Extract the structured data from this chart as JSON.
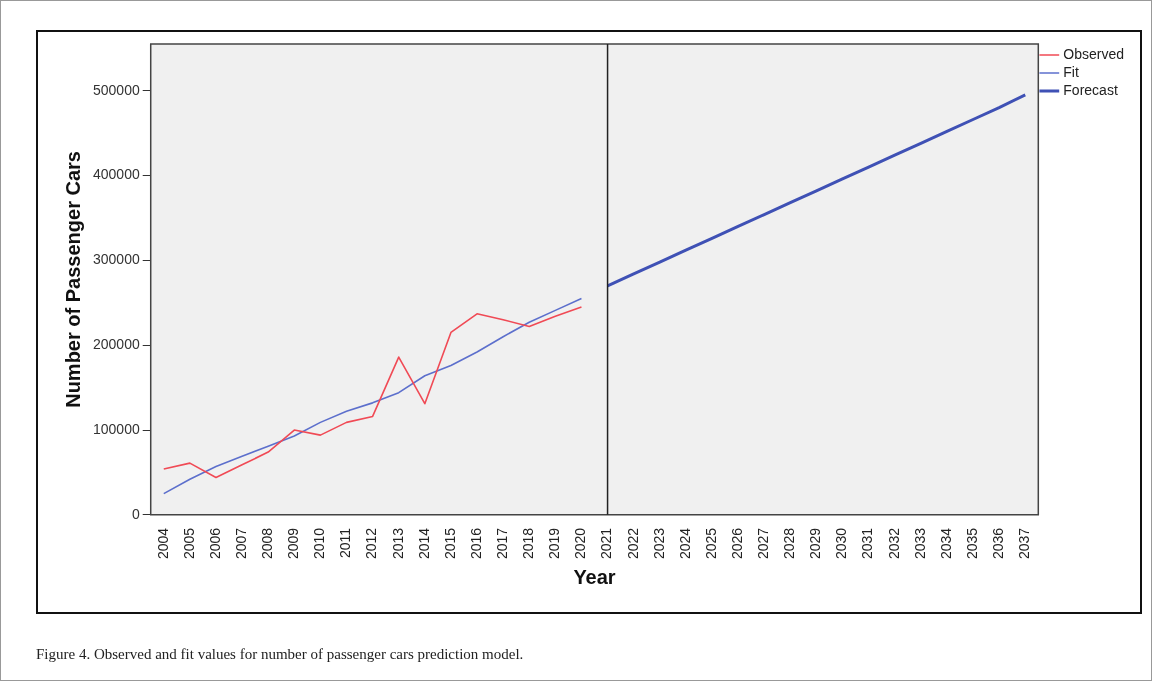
{
  "chart_data": {
    "type": "line",
    "xlabel": "Year",
    "ylabel": "Number of Passenger Cars",
    "categories": [
      "2004",
      "2005",
      "2006",
      "2007",
      "2008",
      "2009",
      "2010",
      "2011",
      "2012",
      "2013",
      "2014",
      "2015",
      "2016",
      "2017",
      "2018",
      "2019",
      "2020",
      "2021",
      "2022",
      "2023",
      "2024",
      "2025",
      "2026",
      "2027",
      "2028",
      "2029",
      "2030",
      "2031",
      "2032",
      "2033",
      "2034",
      "2035",
      "2036",
      "2037"
    ],
    "series": [
      {
        "name": "Observed",
        "color": "#f04a55",
        "values": [
          54000,
          61000,
          44000,
          59000,
          74000,
          100000,
          94000,
          109000,
          116000,
          186000,
          131000,
          215000,
          237000,
          230000,
          222000,
          234000,
          245000,
          null,
          null,
          null,
          null,
          null,
          null,
          null,
          null,
          null,
          null,
          null,
          null,
          null,
          null,
          null,
          null,
          null
        ]
      },
      {
        "name": "Fit",
        "color": "#5c6fcc",
        "values": [
          25000,
          42000,
          57000,
          69000,
          81000,
          93000,
          109000,
          122000,
          132000,
          144000,
          164000,
          176000,
          192000,
          210000,
          227000,
          241000,
          255000,
          null,
          null,
          null,
          null,
          null,
          null,
          null,
          null,
          null,
          null,
          null,
          null,
          null,
          null,
          null,
          null,
          null
        ]
      },
      {
        "name": "Forecast",
        "color": "#3f51b5",
        "values": [
          null,
          null,
          null,
          null,
          null,
          null,
          null,
          null,
          null,
          null,
          null,
          null,
          null,
          null,
          null,
          null,
          null,
          270000,
          284000,
          298000,
          312000,
          326000,
          340000,
          354000,
          368000,
          382000,
          396000,
          410000,
          424000,
          438000,
          452000,
          466000,
          480000,
          495000
        ]
      }
    ],
    "ylim": [
      0,
      555000
    ],
    "yticks": [
      0,
      100000,
      200000,
      300000,
      400000,
      500000
    ],
    "ref_lines": [
      {
        "axis": "x",
        "value": "2021",
        "color": "#222222"
      }
    ],
    "legend": "top right",
    "marker": "none",
    "line_style": "solid",
    "annotations": [
      "Figure 4. Observed and fit values for number of passenger cars prediction model."
    ]
  }
}
